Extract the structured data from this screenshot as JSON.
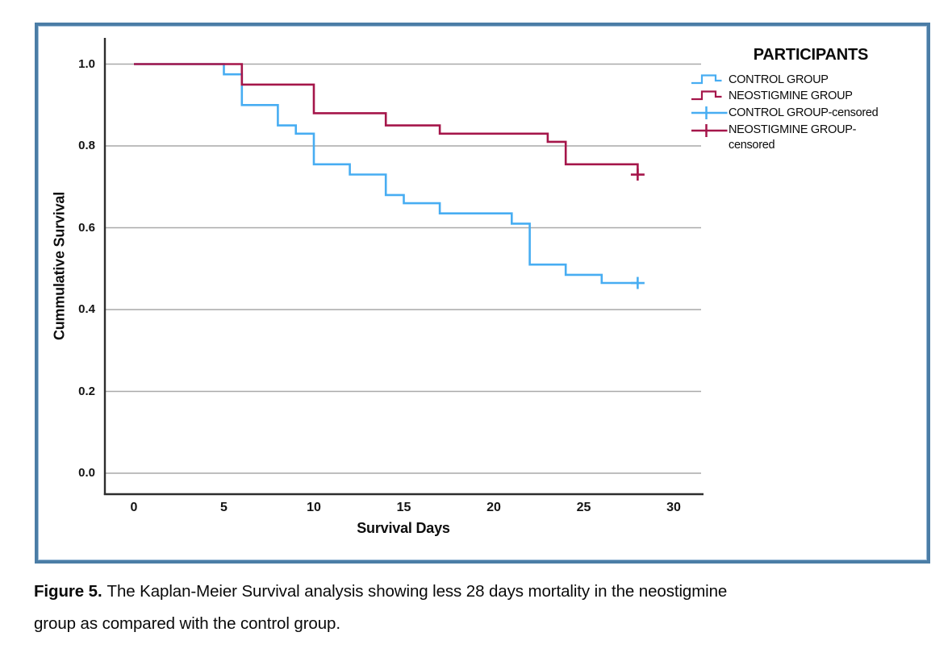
{
  "figure": {
    "border_color": "#4b7da6",
    "caption": {
      "label": "Figure 5.",
      "line1": "The Kaplan-Meier Survival analysis showing less 28 days mortality in the neostigmine",
      "line2": "group as compared with the control group."
    }
  },
  "chart_data": {
    "type": "line",
    "subtype": "kaplan_meier_step",
    "title": "",
    "xlabel": "Survival Days",
    "ylabel": "Cummulative Survival",
    "xlim": [
      0,
      30
    ],
    "ylim": [
      0.0,
      1.0
    ],
    "xticks": [
      0,
      5,
      10,
      15,
      20,
      25,
      30
    ],
    "yticks": [
      0.0,
      0.2,
      0.4,
      0.6,
      0.8,
      1.0
    ],
    "grid": "horizontal",
    "legend_title": "PARTICIPANTS",
    "legend_position": "top-right-outside-plot",
    "legend_items": [
      "CONTROL GROUP",
      "NEOSTIGMINE GROUP",
      "CONTROL GROUP-censored",
      "NEOSTIGMINE GROUP-censored"
    ],
    "series": [
      {
        "name": "CONTROL GROUP",
        "color": "#47adf2",
        "steps_day_survival": [
          [
            0,
            1.0
          ],
          [
            5,
            0.975
          ],
          [
            6,
            0.9
          ],
          [
            8,
            0.85
          ],
          [
            9,
            0.83
          ],
          [
            10,
            0.755
          ],
          [
            12,
            0.73
          ],
          [
            14,
            0.68
          ],
          [
            15,
            0.66
          ],
          [
            17,
            0.635
          ],
          [
            21,
            0.61
          ],
          [
            22,
            0.51
          ],
          [
            24,
            0.485
          ],
          [
            26,
            0.465
          ],
          [
            28,
            0.465
          ]
        ],
        "censored_day_survival": [
          [
            28,
            0.465
          ]
        ]
      },
      {
        "name": "NEOSTIGMINE GROUP",
        "color": "#a5164a",
        "steps_day_survival": [
          [
            0,
            1.0
          ],
          [
            6,
            0.95
          ],
          [
            10,
            0.88
          ],
          [
            14,
            0.85
          ],
          [
            17,
            0.83
          ],
          [
            23,
            0.81
          ],
          [
            24,
            0.755
          ],
          [
            28,
            0.73
          ]
        ],
        "censored_day_survival": [
          [
            28,
            0.73
          ]
        ]
      }
    ],
    "colors": {
      "grid": "#a9a9a9",
      "axis": "#2d2d2d",
      "text": "#000000"
    }
  }
}
